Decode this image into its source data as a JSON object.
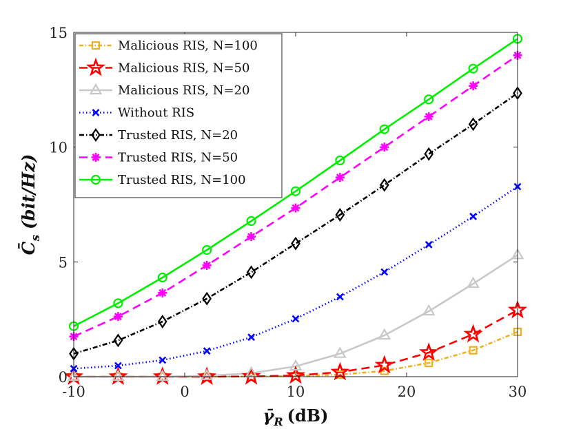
{
  "chart_data": {
    "type": "line",
    "title": "",
    "xlabel": "γ̄R (dB)",
    "xlabel_main": "γ̄",
    "xlabel_sub": "R",
    "xlabel_unit": "(dB)",
    "ylabel": "C̄s (bit/Hz)",
    "ylabel_main": "C̄",
    "ylabel_sub": "s",
    "ylabel_unit": "(bit/Hz)",
    "xlim": [
      -10,
      30
    ],
    "ylim": [
      0,
      15
    ],
    "xticks": [
      -10,
      0,
      10,
      20,
      30
    ],
    "yticks": [
      0,
      5,
      10,
      15
    ],
    "grid": false,
    "legend_position": "top-left",
    "x": [
      -10,
      -6,
      -2,
      2,
      6,
      10,
      14,
      18,
      22,
      26,
      30
    ],
    "series": [
      {
        "name": "Malicious RIS, N=100",
        "color": "#EDB120",
        "dash": "6,3,1.5,3",
        "marker": "square",
        "values": [
          0,
          0,
          0,
          0,
          0.01,
          0.03,
          0.09,
          0.25,
          0.6,
          1.15,
          1.95
        ]
      },
      {
        "name": "Malicious RIS, N=50",
        "color": "#FF0000",
        "dash": "12,7",
        "marker": "star",
        "values": [
          0,
          0,
          0,
          0,
          0.01,
          0.05,
          0.2,
          0.5,
          1.05,
          1.85,
          2.9
        ]
      },
      {
        "name": "Malicious RIS, N=20",
        "color": "#C8C8C8",
        "dash": "",
        "marker": "triangle",
        "values": [
          0,
          0,
          0,
          0.04,
          0.15,
          0.45,
          1.0,
          1.8,
          2.85,
          4.05,
          5.3
        ]
      },
      {
        "name": "Without RIS",
        "color": "#0000FF",
        "dash": "1.5,3.5",
        "marker": "x",
        "values": [
          0.35,
          0.48,
          0.72,
          1.12,
          1.72,
          2.52,
          3.48,
          4.56,
          5.75,
          6.98,
          8.28
        ]
      },
      {
        "name": "Trusted RIS, N=20",
        "color": "#000000",
        "dash": "7,3,1.5,3",
        "marker": "diamond",
        "values": [
          1.0,
          1.58,
          2.4,
          3.4,
          4.55,
          5.8,
          7.05,
          8.35,
          9.7,
          11.0,
          12.35
        ]
      },
      {
        "name": "Trusted RIS, N=50",
        "color": "#FF00FF",
        "dash": "12,7",
        "marker": "asterisk",
        "values": [
          1.75,
          2.62,
          3.65,
          4.85,
          6.1,
          7.35,
          8.68,
          10.0,
          11.33,
          12.67,
          14.0
        ]
      },
      {
        "name": "Trusted RIS, N=100",
        "color": "#00EE00",
        "dash": "",
        "marker": "circle",
        "values": [
          2.2,
          3.2,
          4.32,
          5.52,
          6.78,
          8.08,
          9.42,
          10.78,
          12.08,
          13.42,
          14.72
        ]
      }
    ]
  }
}
